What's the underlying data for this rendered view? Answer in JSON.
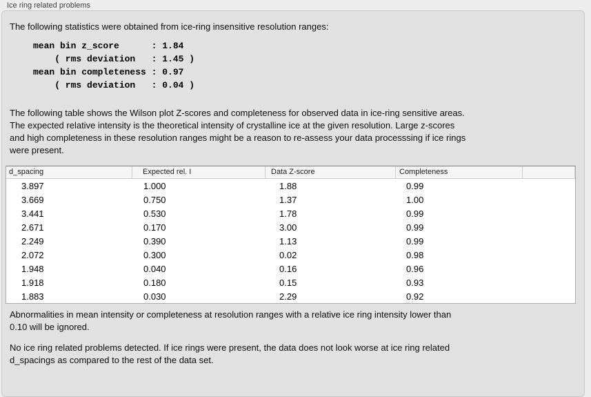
{
  "panel": {
    "title": "Ice ring related problems"
  },
  "intro": {
    "text": "The following statistics were obtained from ice-ring insensitive resolution ranges:",
    "stats_block": "mean bin z_score      : 1.84\n    ( rms deviation   : 1.45 )\nmean bin completeness : 0.97\n    ( rms deviation   : 0.04 )",
    "stats": {
      "mean_bin_z_score": "1.84",
      "z_score_rms_deviation": "1.45",
      "mean_bin_completeness": "0.97",
      "completeness_rms_deviation": "0.04"
    }
  },
  "description": {
    "text": "The following table shows the Wilson plot Z-scores and completeness for observed data in ice-ring sensitive areas.\nThe expected relative intensity is the theoretical intensity of crystalline ice at the given resolution. Large z-scores\nand high completeness in these resolution ranges might be a reason to re-assess your data processsing if ice rings\nwere present."
  },
  "table": {
    "columns": [
      "d_spacing",
      "Expected rel. I",
      "Data Z-score",
      "Completeness"
    ],
    "rows": [
      [
        "3.897",
        "1.000",
        "1.88",
        "0.99"
      ],
      [
        "3.669",
        "0.750",
        "1.37",
        "1.00"
      ],
      [
        "3.441",
        "0.530",
        "1.78",
        "0.99"
      ],
      [
        "2.671",
        "0.170",
        "3.00",
        "0.99"
      ],
      [
        "2.249",
        "0.390",
        "1.13",
        "0.99"
      ],
      [
        "2.072",
        "0.300",
        "0.02",
        "0.98"
      ],
      [
        "1.948",
        "0.040",
        "0.16",
        "0.96"
      ],
      [
        "1.918",
        "0.180",
        "0.15",
        "0.93"
      ],
      [
        "1.883",
        "0.030",
        "2.29",
        "0.92"
      ]
    ]
  },
  "notes": {
    "ignore_note": "Abnormalities in mean intensity or completeness at resolution ranges with a relative ice ring intensity lower than\n0.10 will be ignored.",
    "conclusion": "No ice ring related problems detected. If ice rings were present, the data does not look worse at ice ring related\nd_spacings as compared to the rest of the data set."
  },
  "colors": {
    "page_background": "#ededed",
    "groupbox_background": "#e1e1e1",
    "groupbox_border": "#c8c8c8",
    "table_background": "#ffffff",
    "table_header_background": "#f5f5f5",
    "text": "#0d0d0d"
  }
}
